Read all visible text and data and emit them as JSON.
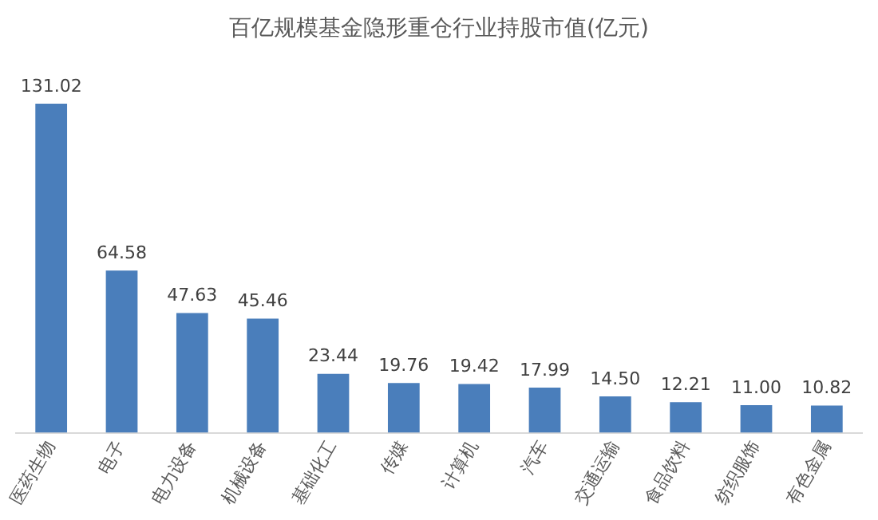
{
  "chart_data": {
    "type": "bar",
    "title": "百亿规模基金隐形重仓行业持股市值(亿元)",
    "categories": [
      "医药生物",
      "电子",
      "电力设备",
      "机械设备",
      "基础化工",
      "传媒",
      "计算机",
      "汽车",
      "交通运输",
      "食品饮料",
      "纺织服饰",
      "有色金属"
    ],
    "values": [
      131.02,
      64.58,
      47.63,
      45.46,
      23.44,
      19.76,
      19.42,
      17.99,
      14.5,
      12.21,
      11.0,
      10.82
    ],
    "value_labels": [
      "131.02",
      "64.58",
      "47.63",
      "45.46",
      "23.44",
      "19.76",
      "19.42",
      "17.99",
      "14.50",
      "12.21",
      "11.00",
      "10.82"
    ],
    "color": "#4a7ebb",
    "tick_labels": "x",
    "grid": false,
    "legend": false
  }
}
